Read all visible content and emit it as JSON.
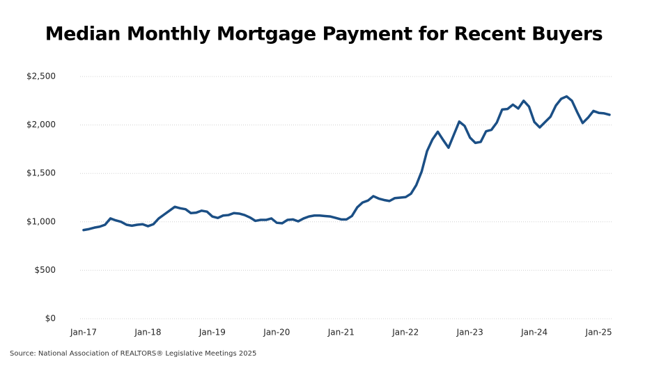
{
  "chart_data": {
    "type": "line",
    "title": "Median Monthly Mortgage Payment for Recent Buyers",
    "source": "Source: National Association of REALTORS® Legislative Meetings 2025",
    "categories": [
      "Jan-17",
      null,
      null,
      null,
      null,
      null,
      null,
      null,
      null,
      null,
      null,
      null,
      "Jan-18",
      null,
      null,
      null,
      null,
      null,
      null,
      null,
      null,
      null,
      null,
      null,
      "Jan-19",
      null,
      null,
      null,
      null,
      null,
      null,
      null,
      null,
      null,
      null,
      null,
      "Jan-20",
      null,
      null,
      null,
      null,
      null,
      null,
      null,
      null,
      null,
      null,
      null,
      "Jan-21",
      null,
      null,
      null,
      null,
      null,
      null,
      null,
      null,
      null,
      null,
      null,
      "Jan-22",
      null,
      null,
      null,
      null,
      null,
      null,
      null,
      null,
      null,
      null,
      null,
      "Jan-23",
      null,
      null,
      null,
      null,
      null,
      null,
      null,
      null,
      null,
      null,
      null,
      "Jan-24",
      null,
      null,
      null,
      null,
      null,
      null,
      null,
      null,
      null,
      null,
      null,
      "Jan-25",
      null,
      null
    ],
    "series": [
      {
        "color": "#1b4f85",
        "values": [
          915,
          925,
          940,
          950,
          970,
          1035,
          1015,
          1000,
          970,
          960,
          970,
          975,
          955,
          975,
          1035,
          1075,
          1115,
          1155,
          1140,
          1130,
          1090,
          1095,
          1115,
          1105,
          1055,
          1040,
          1065,
          1070,
          1090,
          1085,
          1070,
          1045,
          1010,
          1020,
          1020,
          1035,
          990,
          985,
          1020,
          1025,
          1005,
          1035,
          1055,
          1065,
          1065,
          1060,
          1055,
          1040,
          1025,
          1025,
          1060,
          1150,
          1200,
          1220,
          1265,
          1240,
          1225,
          1215,
          1245,
          1250,
          1255,
          1290,
          1380,
          1520,
          1730,
          1850,
          1930,
          1845,
          1765,
          1900,
          2035,
          1990,
          1870,
          1815,
          1825,
          1935,
          1950,
          2025,
          2160,
          2165,
          2210,
          2170,
          2250,
          2190,
          2030,
          1975,
          2030,
          2085,
          2200,
          2270,
          2295,
          2250,
          2130,
          2020,
          2075,
          2145,
          2125,
          2120,
          2105
        ]
      }
    ],
    "ylim": [
      0,
      2500
    ],
    "yticks": [
      {
        "value": 0,
        "label": "$0"
      },
      {
        "value": 500,
        "label": "$500"
      },
      {
        "value": 1000,
        "label": "$1,000"
      },
      {
        "value": 1500,
        "label": "$1,500"
      },
      {
        "value": 2000,
        "label": "$2,000"
      },
      {
        "value": 2500,
        "label": "$2,500"
      }
    ],
    "grid": true
  }
}
